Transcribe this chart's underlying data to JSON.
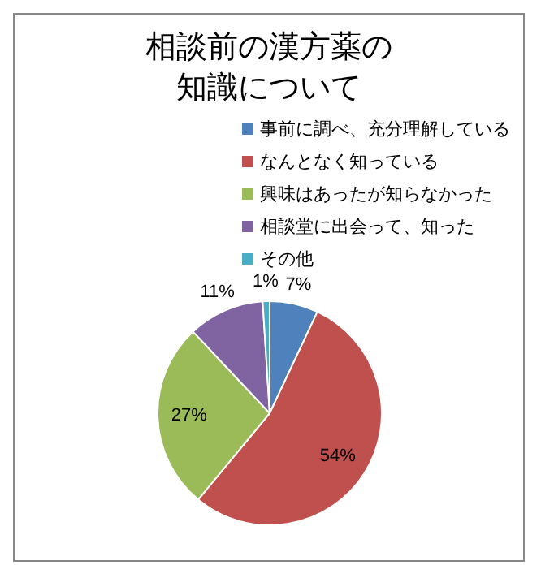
{
  "chart_data": {
    "type": "pie",
    "title": "相談前の漢方薬の知識について",
    "categories": [
      "事前に調べ、充分理解している",
      "なんとなく知っている",
      "興味はあったが知らなかった",
      "相談堂に出会って、知った",
      "その他"
    ],
    "values": [
      7,
      54,
      27,
      11,
      1
    ],
    "colors": [
      "#4f81bd",
      "#c0504d",
      "#9bbb59",
      "#8064a2",
      "#4bacc6"
    ],
    "legend": "top right",
    "value_labels": [
      "7%",
      "54%",
      "27%",
      "11%",
      "1%"
    ]
  }
}
